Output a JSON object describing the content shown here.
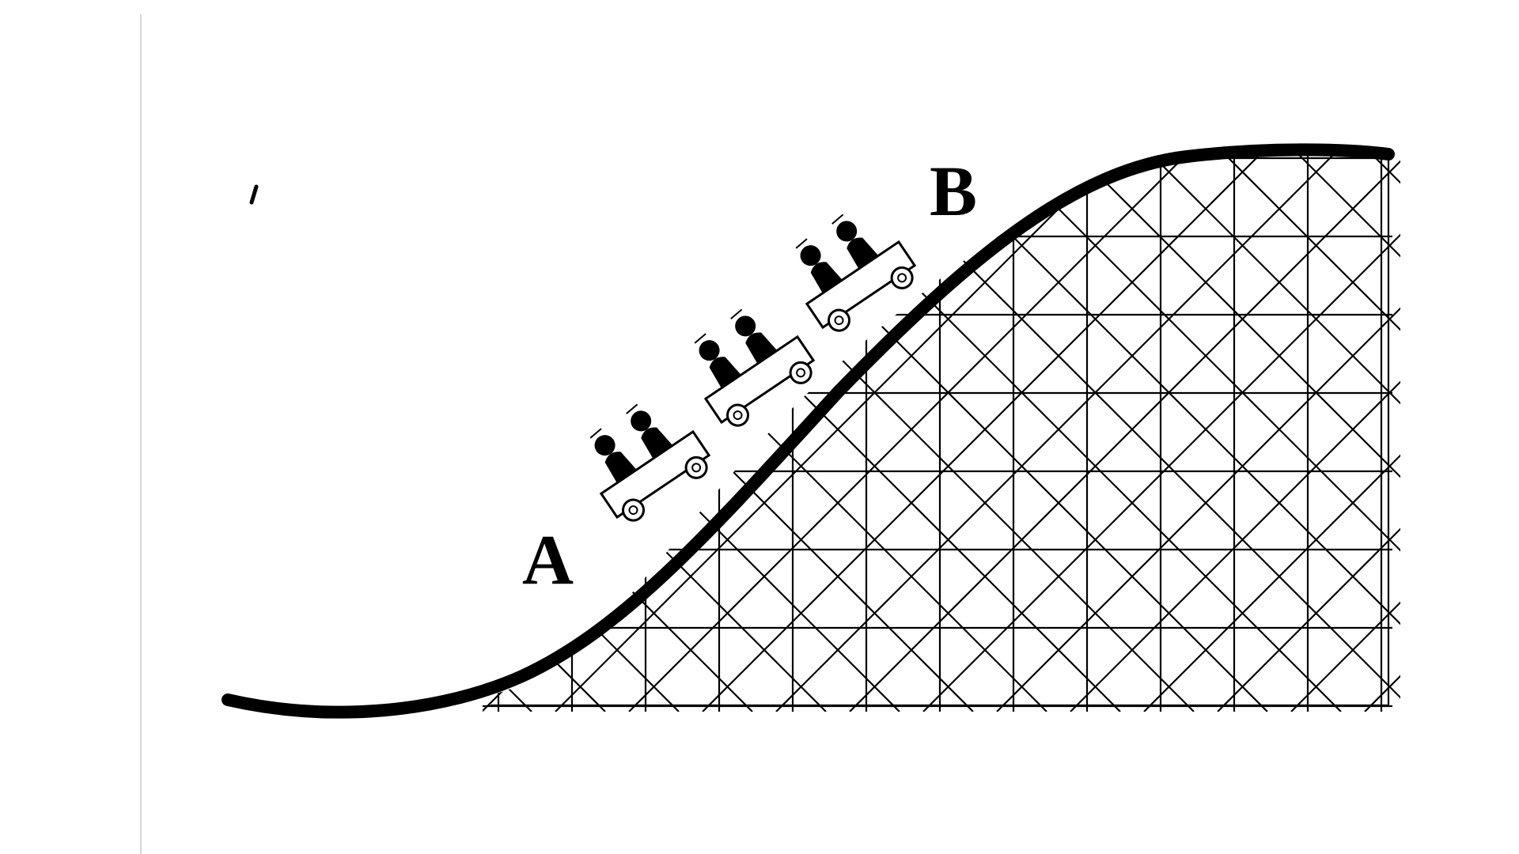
{
  "diagram": {
    "labels": {
      "point_a": "A",
      "point_b": "B"
    },
    "train": {
      "car_count": 3,
      "riders_per_car": 2
    },
    "colors": {
      "background": "#ffffff",
      "ink": "#000000"
    }
  }
}
